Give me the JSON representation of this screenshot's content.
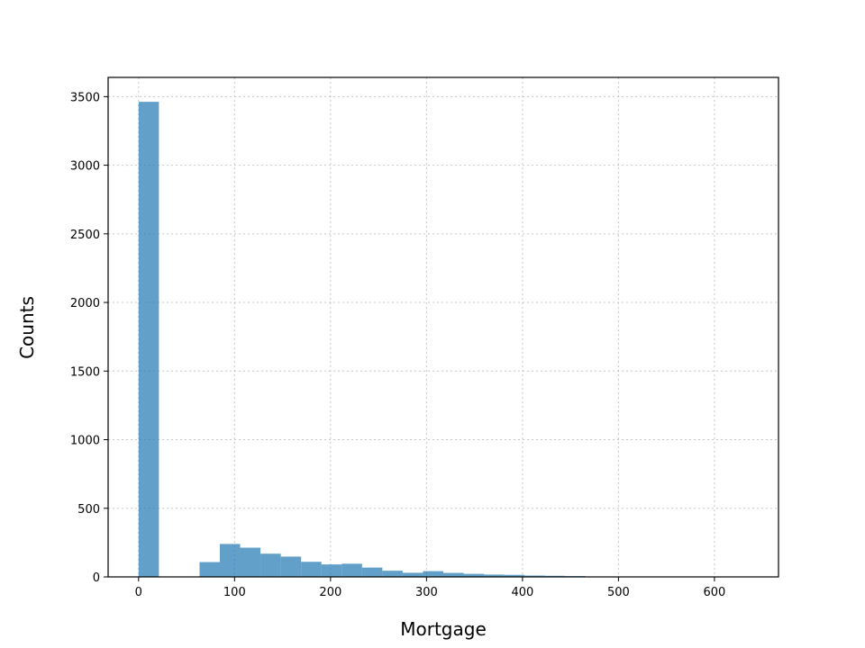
{
  "chart_data": {
    "type": "bar",
    "title": "",
    "xlabel": "Mortgage",
    "ylabel": "Counts",
    "xlim": [
      -31.75,
      666.75
    ],
    "ylim": [
      0,
      3640
    ],
    "xticks": [
      0,
      100,
      200,
      300,
      400,
      500,
      600
    ],
    "yticks": [
      0,
      500,
      1000,
      1500,
      2000,
      2500,
      3000,
      3500
    ],
    "grid": true,
    "bar_color": "#1f77b4",
    "bar_opacity": 0.7,
    "bin_width": 21.1667,
    "bins": [
      {
        "x0": 0.0,
        "count": 3462
      },
      {
        "x0": 21.17,
        "count": 0
      },
      {
        "x0": 42.33,
        "count": 0
      },
      {
        "x0": 63.5,
        "count": 108
      },
      {
        "x0": 84.67,
        "count": 240
      },
      {
        "x0": 105.83,
        "count": 213
      },
      {
        "x0": 127.0,
        "count": 169
      },
      {
        "x0": 148.17,
        "count": 148
      },
      {
        "x0": 169.33,
        "count": 110
      },
      {
        "x0": 190.5,
        "count": 91
      },
      {
        "x0": 211.67,
        "count": 96
      },
      {
        "x0": 232.83,
        "count": 68
      },
      {
        "x0": 254.0,
        "count": 45
      },
      {
        "x0": 275.17,
        "count": 30
      },
      {
        "x0": 296.33,
        "count": 42
      },
      {
        "x0": 317.5,
        "count": 29
      },
      {
        "x0": 338.67,
        "count": 22
      },
      {
        "x0": 359.83,
        "count": 17
      },
      {
        "x0": 381.0,
        "count": 15
      },
      {
        "x0": 402.17,
        "count": 10
      },
      {
        "x0": 423.33,
        "count": 8
      },
      {
        "x0": 444.5,
        "count": 6
      },
      {
        "x0": 465.67,
        "count": 3
      },
      {
        "x0": 486.83,
        "count": 2
      },
      {
        "x0": 508.0,
        "count": 2
      },
      {
        "x0": 529.17,
        "count": 1
      },
      {
        "x0": 550.33,
        "count": 1
      },
      {
        "x0": 571.5,
        "count": 1
      },
      {
        "x0": 592.67,
        "count": 1
      },
      {
        "x0": 613.83,
        "count": 1
      }
    ]
  }
}
